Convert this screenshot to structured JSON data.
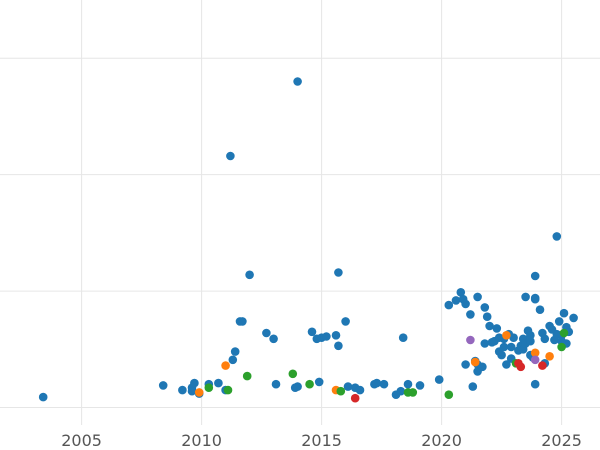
{
  "chart_data": {
    "type": "scatter",
    "title": "",
    "xlabel": "",
    "ylabel": "",
    "xlim": [
      2001.6,
      2026.6
    ],
    "ylim": [
      -0.15,
      3.5
    ],
    "grid": true,
    "x_ticks": [
      2005,
      2010,
      2015,
      2020,
      2025
    ],
    "x_tick_labels": [
      "2005",
      "2010",
      "2015",
      "2020",
      "2025"
    ],
    "y_grid_values": [
      0,
      1,
      2,
      3
    ],
    "colors": {
      "blue": "#1f77b4",
      "orange": "#ff7f0e",
      "green": "#2ca02c",
      "red": "#d62728",
      "purple": "#9467bd"
    },
    "series": [
      {
        "color_key": "blue",
        "points": [
          [
            2003.4,
            0.09
          ],
          [
            2008.4,
            0.19
          ],
          [
            2009.2,
            0.15
          ],
          [
            2009.6,
            0.17
          ],
          [
            2009.6,
            0.14
          ],
          [
            2009.7,
            0.21
          ],
          [
            2009.9,
            0.12
          ],
          [
            2010.3,
            0.2
          ],
          [
            2010.7,
            0.21
          ],
          [
            2011.0,
            0.15
          ],
          [
            2011.2,
            2.16
          ],
          [
            2011.3,
            0.41
          ],
          [
            2011.4,
            0.48
          ],
          [
            2011.6,
            0.74
          ],
          [
            2011.7,
            0.74
          ],
          [
            2012.0,
            1.14
          ],
          [
            2012.7,
            0.64
          ],
          [
            2013.0,
            0.59
          ],
          [
            2013.1,
            0.2
          ],
          [
            2013.9,
            0.17
          ],
          [
            2014.0,
            0.18
          ],
          [
            2014.0,
            2.8
          ],
          [
            2014.6,
            0.65
          ],
          [
            2014.8,
            0.59
          ],
          [
            2014.9,
            0.22
          ],
          [
            2015.0,
            0.6
          ],
          [
            2015.2,
            0.61
          ],
          [
            2015.6,
            0.62
          ],
          [
            2015.7,
            1.16
          ],
          [
            2015.7,
            0.53
          ],
          [
            2016.0,
            0.74
          ],
          [
            2016.1,
            0.18
          ],
          [
            2016.4,
            0.17
          ],
          [
            2016.6,
            0.15
          ],
          [
            2017.2,
            0.2
          ],
          [
            2017.3,
            0.21
          ],
          [
            2017.6,
            0.2
          ],
          [
            2018.1,
            0.11
          ],
          [
            2018.3,
            0.14
          ],
          [
            2018.4,
            0.6
          ],
          [
            2018.6,
            0.2
          ],
          [
            2019.1,
            0.19
          ],
          [
            2019.9,
            0.24
          ],
          [
            2020.3,
            0.88
          ],
          [
            2020.6,
            0.92
          ],
          [
            2020.8,
            0.99
          ],
          [
            2020.9,
            0.93
          ],
          [
            2021.0,
            0.89
          ],
          [
            2021.2,
            0.8
          ],
          [
            2021.3,
            0.18
          ],
          [
            2021.5,
            0.37
          ],
          [
            2021.5,
            0.31
          ],
          [
            2021.5,
            0.95
          ],
          [
            2021.8,
            0.86
          ],
          [
            2021.9,
            0.78
          ],
          [
            2022.0,
            0.7
          ],
          [
            2022.1,
            0.56
          ],
          [
            2022.2,
            0.57
          ],
          [
            2022.3,
            0.68
          ],
          [
            2022.4,
            0.6
          ],
          [
            2022.6,
            0.59
          ],
          [
            2022.6,
            0.52
          ],
          [
            2022.8,
            0.63
          ],
          [
            2022.9,
            0.52
          ],
          [
            2022.9,
            0.42
          ],
          [
            2023.0,
            0.6
          ],
          [
            2023.2,
            0.49
          ],
          [
            2023.3,
            0.53
          ],
          [
            2023.4,
            0.59
          ],
          [
            2023.4,
            0.5
          ],
          [
            2023.5,
            0.55
          ],
          [
            2023.6,
            0.66
          ],
          [
            2023.7,
            0.57
          ],
          [
            2023.7,
            0.45
          ],
          [
            2023.7,
            0.62
          ],
          [
            2023.8,
            0.43
          ],
          [
            2023.9,
            0.94
          ],
          [
            2024.1,
            0.84
          ],
          [
            2024.2,
            0.64
          ],
          [
            2024.3,
            0.59
          ],
          [
            2024.5,
            0.7
          ],
          [
            2024.6,
            0.67
          ],
          [
            2024.7,
            0.58
          ],
          [
            2024.8,
            1.47
          ],
          [
            2024.9,
            0.74
          ],
          [
            2025.0,
            0.62
          ],
          [
            2025.1,
            0.81
          ],
          [
            2025.2,
            0.69
          ],
          [
            2025.3,
            0.65
          ],
          [
            2025.5,
            0.77
          ],
          [
            2021.4,
            0.4
          ],
          [
            2021.0,
            0.37
          ],
          [
            2021.7,
            0.35
          ],
          [
            2022.7,
            0.37
          ],
          [
            2022.5,
            0.45
          ],
          [
            2023.9,
            1.13
          ],
          [
            2023.9,
            0.93
          ],
          [
            2023.5,
            0.95
          ],
          [
            2024.3,
            0.38
          ],
          [
            2024.8,
            0.63
          ],
          [
            2025.2,
            0.55
          ],
          [
            2025.0,
            0.57
          ],
          [
            2021.8,
            0.55
          ],
          [
            2022.4,
            0.48
          ],
          [
            2023.9,
            0.2
          ]
        ]
      },
      {
        "color_key": "orange",
        "points": [
          [
            2009.9,
            0.13
          ],
          [
            2011.0,
            0.36
          ],
          [
            2015.6,
            0.15
          ],
          [
            2021.4,
            0.39
          ],
          [
            2022.7,
            0.62
          ],
          [
            2023.9,
            0.47
          ],
          [
            2024.5,
            0.44
          ]
        ]
      },
      {
        "color_key": "green",
        "points": [
          [
            2010.3,
            0.17
          ],
          [
            2011.1,
            0.15
          ],
          [
            2011.9,
            0.27
          ],
          [
            2013.8,
            0.29
          ],
          [
            2014.5,
            0.2
          ],
          [
            2015.8,
            0.14
          ],
          [
            2018.6,
            0.13
          ],
          [
            2018.8,
            0.13
          ],
          [
            2020.3,
            0.11
          ],
          [
            2023.1,
            0.38
          ],
          [
            2025.0,
            0.52
          ],
          [
            2025.1,
            0.64
          ]
        ]
      },
      {
        "color_key": "red",
        "points": [
          [
            2016.4,
            0.08
          ],
          [
            2023.2,
            0.38
          ],
          [
            2024.2,
            0.36
          ],
          [
            2023.3,
            0.35
          ]
        ]
      },
      {
        "color_key": "purple",
        "points": [
          [
            2021.2,
            0.58
          ],
          [
            2023.9,
            0.41
          ]
        ]
      }
    ]
  }
}
